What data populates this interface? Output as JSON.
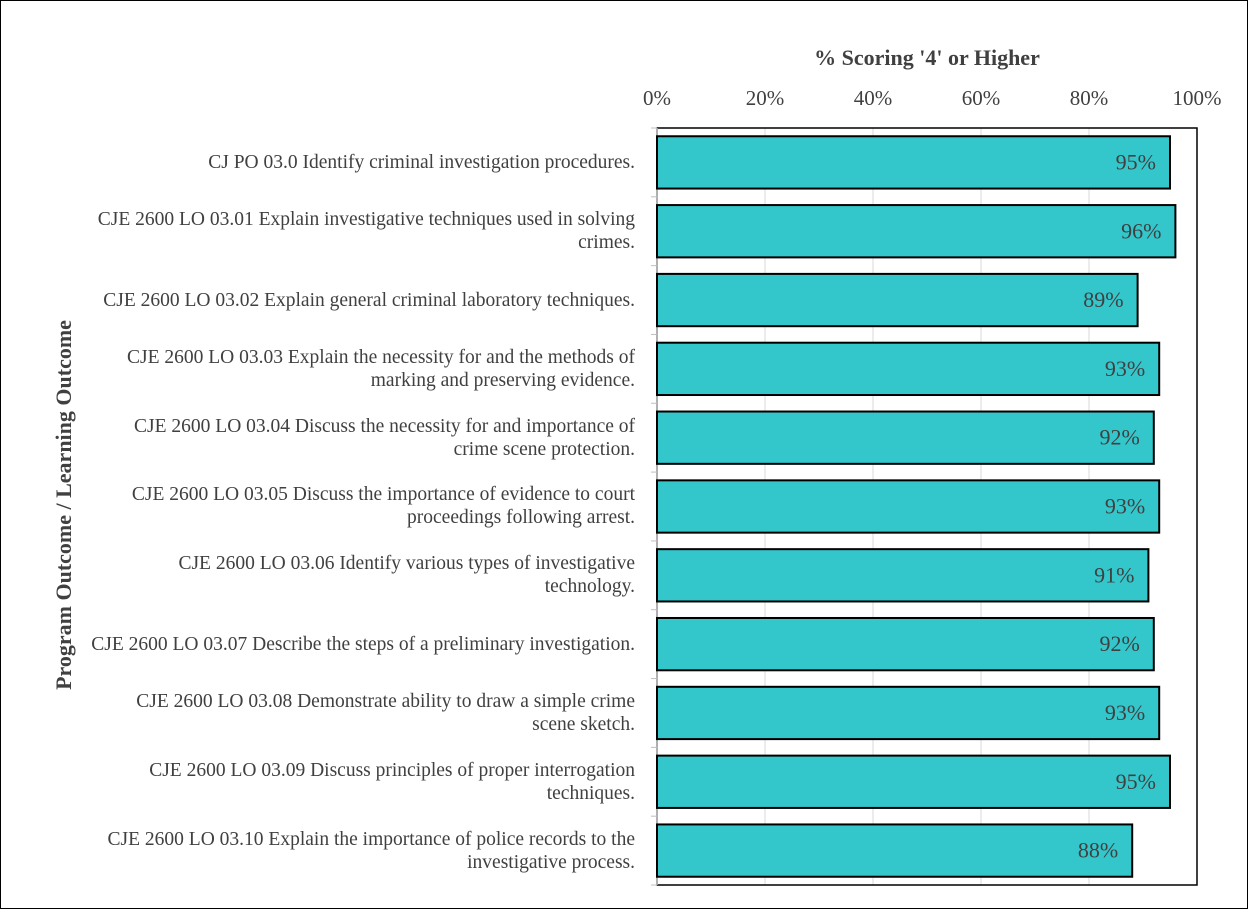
{
  "chart_data": {
    "type": "bar",
    "orientation": "horizontal",
    "title": "% Scoring '4' or Higher",
    "y_axis_label": "Program Outcome / Learning Outcome",
    "categories": [
      "CJ PO 03.0 Identify criminal investigation procedures.",
      "CJE 2600 LO 03.01 Explain investigative techniques used in solving crimes.",
      "CJE 2600 LO 03.02 Explain general criminal laboratory techniques.",
      "CJE 2600 LO 03.03 Explain the necessity for and the methods of marking and preserving evidence.",
      "CJE 2600 LO 03.04 Discuss the necessity for and importance of crime scene protection.",
      "CJE 2600 LO 03.05 Discuss the importance of evidence to court proceedings following arrest.",
      "CJE 2600 LO 03.06 Identify various types of investigative technology.",
      "CJE 2600 LO 03.07 Describe the steps of a preliminary investigation.",
      "CJE 2600 LO 03.08 Demonstrate ability to draw a simple crime scene sketch.",
      "CJE 2600 LO 03.09 Discuss principles of proper interrogation techniques.",
      "CJE 2600 LO 03.10 Explain the importance of police records to the investigative process."
    ],
    "values": [
      95,
      96,
      89,
      93,
      92,
      93,
      91,
      92,
      93,
      95,
      88
    ],
    "value_labels": [
      "95%",
      "96%",
      "89%",
      "93%",
      "92%",
      "93%",
      "91%",
      "92%",
      "93%",
      "95%",
      "88%"
    ],
    "color": "#33c7cc",
    "xlim": [
      0,
      100
    ],
    "xticks": [
      {
        "value": 0,
        "label": "0%"
      },
      {
        "value": 20,
        "label": "20%"
      },
      {
        "value": 40,
        "label": "40%"
      },
      {
        "value": 60,
        "label": "60%"
      },
      {
        "value": 80,
        "label": "80%"
      },
      {
        "value": 100,
        "label": "100%"
      }
    ],
    "grid": true
  }
}
